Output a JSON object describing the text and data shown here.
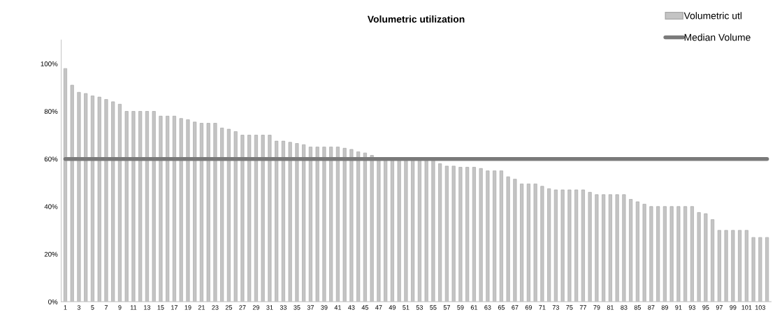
{
  "chart_data": {
    "type": "bar",
    "title": "Volumetric utilization",
    "categories": [
      "1",
      null,
      "3",
      null,
      "5",
      null,
      "7",
      null,
      "9",
      null,
      "11",
      null,
      "13",
      null,
      "15",
      null,
      "17",
      null,
      "19",
      null,
      "21",
      null,
      "23",
      null,
      "25",
      null,
      "27",
      null,
      "29",
      null,
      "31",
      null,
      "33",
      null,
      "35",
      null,
      "37",
      null,
      "39",
      null,
      "41",
      null,
      "43",
      null,
      "45",
      null,
      "47",
      null,
      "49",
      null,
      "51",
      null,
      "53",
      null,
      "55",
      null,
      "57",
      null,
      "59",
      null,
      "61",
      null,
      "63",
      null,
      "65",
      null,
      "67",
      null,
      "69",
      null,
      "71",
      null,
      "73",
      null,
      "75",
      null,
      "77",
      null,
      "79",
      null,
      "81",
      null,
      "83",
      null,
      "85",
      null,
      "87",
      null,
      "89",
      null,
      "91",
      null,
      "93",
      null,
      "95",
      null,
      "97",
      null,
      "99",
      null,
      "101",
      null,
      "103",
      null
    ],
    "series": [
      {
        "name": "Volumetric utl",
        "color": "#c4c4c4",
        "values": [
          98,
          91,
          88,
          87.5,
          86.5,
          86,
          85,
          84,
          83,
          80,
          80,
          80,
          80,
          80,
          78,
          78,
          78,
          77,
          76.5,
          75.5,
          75,
          75,
          75,
          73,
          72.5,
          71.5,
          70,
          70,
          70,
          70,
          70,
          67.5,
          67.5,
          67,
          66.5,
          66,
          65,
          65,
          65,
          65,
          65,
          64.5,
          64,
          63,
          62.5,
          61.5,
          60,
          60,
          60,
          60,
          60,
          60,
          60,
          60,
          59.5,
          58,
          57,
          57,
          56.5,
          56.5,
          56.5,
          56,
          55,
          55,
          55,
          52.5,
          51.5,
          49.5,
          49.5,
          49.5,
          48.5,
          47.5,
          47,
          47,
          47,
          47,
          47,
          46,
          45,
          45,
          45,
          45,
          45,
          43,
          42,
          41,
          40,
          40,
          40,
          40,
          40,
          40,
          40,
          37.5,
          37,
          34.5,
          30,
          30,
          30,
          30,
          30,
          27,
          27,
          27
        ]
      },
      {
        "name": "Median Volume",
        "type": "line",
        "color": "#7a7a7a",
        "values": [
          60,
          60,
          60,
          60,
          60,
          60,
          60,
          60,
          60,
          60,
          60,
          60,
          60,
          60,
          60,
          60,
          60,
          60,
          60,
          60,
          60,
          60,
          60,
          60,
          60,
          60,
          60,
          60,
          60,
          60,
          60,
          60,
          60,
          60,
          60,
          60,
          60,
          60,
          60,
          60,
          60,
          60,
          60,
          60,
          60,
          60,
          60,
          60,
          60,
          60,
          60,
          60,
          60,
          60,
          60,
          60,
          60,
          60,
          60,
          60,
          60,
          60,
          60,
          60,
          60,
          60,
          60,
          60,
          60,
          60,
          60,
          60,
          60,
          60,
          60,
          60,
          60,
          60,
          60,
          60,
          60,
          60,
          60,
          60,
          60,
          60,
          60,
          60,
          60,
          60,
          60,
          60,
          60,
          60,
          60,
          60,
          60,
          60,
          60,
          60,
          60,
          60,
          60,
          60
        ]
      }
    ],
    "ylim": [
      0,
      110
    ],
    "yticks": [
      {
        "value": 0,
        "label": "0%"
      },
      {
        "value": 20,
        "label": "20%"
      },
      {
        "value": 40,
        "label": "40%"
      },
      {
        "value": 60,
        "label": "60%"
      },
      {
        "value": 80,
        "label": "80%"
      },
      {
        "value": 100,
        "label": "100%"
      }
    ],
    "grid": false,
    "legend": "top right",
    "marker": "none",
    "line_style": "solid"
  }
}
